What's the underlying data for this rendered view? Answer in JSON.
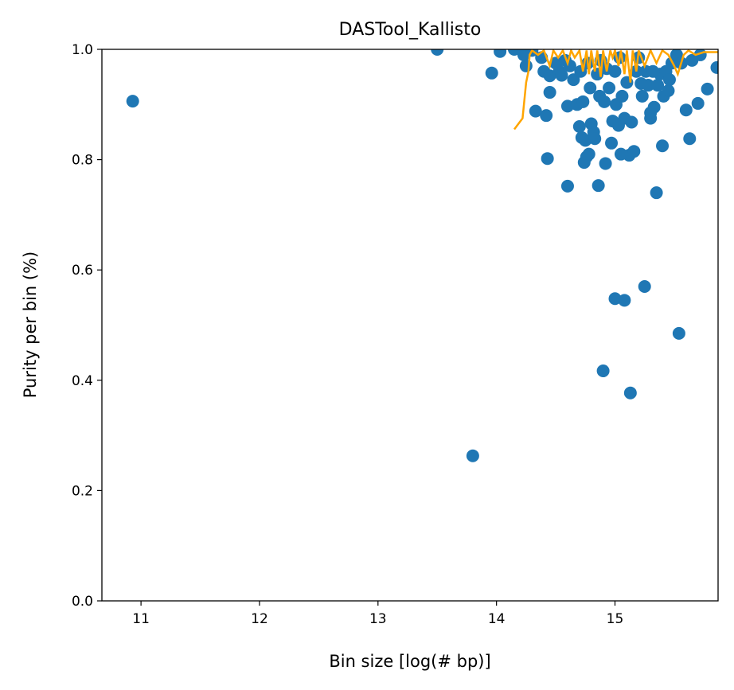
{
  "chart_data": {
    "type": "scatter",
    "title": "DASTool_Kallisto",
    "xlabel": "Bin size [log(# bp)]",
    "ylabel": "Purity per bin (%)",
    "xlim": [
      10.67,
      15.87
    ],
    "ylim": [
      0.0,
      1.0
    ],
    "xticks": [
      11,
      12,
      13,
      14,
      15
    ],
    "xtick_labels": [
      "11",
      "12",
      "13",
      "14",
      "15"
    ],
    "yticks": [
      0.0,
      0.2,
      0.4,
      0.6,
      0.8,
      1.0
    ],
    "ytick_labels": [
      "0.0",
      "0.2",
      "0.4",
      "0.6",
      "0.8",
      "1.0"
    ],
    "grid": false,
    "colors": {
      "scatter": "#1f77b4",
      "line": "#ffa500"
    },
    "series": [
      {
        "kind": "scatter",
        "points": [
          [
            10.93,
            0.906
          ],
          [
            13.5,
            1.0
          ],
          [
            13.8,
            0.263
          ],
          [
            13.96,
            0.957
          ],
          [
            14.03,
            0.996
          ],
          [
            14.15,
            1.0
          ],
          [
            14.23,
            0.99
          ],
          [
            14.25,
            0.97
          ],
          [
            14.3,
            0.998
          ],
          [
            14.33,
            0.888
          ],
          [
            14.38,
            0.985
          ],
          [
            14.4,
            0.96
          ],
          [
            14.42,
            0.88
          ],
          [
            14.43,
            0.802
          ],
          [
            14.45,
            0.922
          ],
          [
            14.45,
            0.952
          ],
          [
            14.5,
            0.975
          ],
          [
            14.53,
            0.96
          ],
          [
            14.55,
            0.953
          ],
          [
            14.58,
            0.98
          ],
          [
            14.6,
            0.897
          ],
          [
            14.6,
            0.752
          ],
          [
            14.62,
            0.97
          ],
          [
            14.65,
            0.945
          ],
          [
            14.68,
            0.9
          ],
          [
            14.7,
            0.86
          ],
          [
            14.71,
            0.96
          ],
          [
            14.72,
            0.84
          ],
          [
            14.73,
            0.905
          ],
          [
            14.74,
            0.795
          ],
          [
            14.75,
            0.835
          ],
          [
            14.76,
            0.805
          ],
          [
            14.77,
            0.975
          ],
          [
            14.78,
            0.81
          ],
          [
            14.79,
            0.93
          ],
          [
            14.8,
            0.865
          ],
          [
            14.82,
            0.85
          ],
          [
            14.83,
            0.838
          ],
          [
            14.85,
            0.955
          ],
          [
            14.86,
            0.753
          ],
          [
            14.87,
            0.915
          ],
          [
            14.88,
            0.98
          ],
          [
            14.9,
            0.417
          ],
          [
            14.91,
            0.905
          ],
          [
            14.92,
            0.793
          ],
          [
            14.93,
            0.965
          ],
          [
            14.95,
            0.93
          ],
          [
            14.97,
            0.83
          ],
          [
            14.98,
            0.87
          ],
          [
            15.0,
            0.548
          ],
          [
            15.0,
            0.96
          ],
          [
            15.01,
            0.9
          ],
          [
            15.03,
            0.862
          ],
          [
            15.04,
            0.985
          ],
          [
            15.05,
            0.81
          ],
          [
            15.06,
            0.915
          ],
          [
            15.08,
            0.545
          ],
          [
            15.08,
            0.875
          ],
          [
            15.1,
            0.94
          ],
          [
            15.12,
            0.808
          ],
          [
            15.13,
            0.377
          ],
          [
            15.14,
            0.868
          ],
          [
            15.16,
            0.815
          ],
          [
            15.18,
            0.96
          ],
          [
            15.2,
            0.985
          ],
          [
            15.22,
            0.938
          ],
          [
            15.23,
            0.915
          ],
          [
            15.25,
            0.57
          ],
          [
            15.26,
            0.96
          ],
          [
            15.28,
            0.935
          ],
          [
            15.3,
            0.875
          ],
          [
            15.3,
            0.885
          ],
          [
            15.32,
            0.96
          ],
          [
            15.33,
            0.895
          ],
          [
            15.35,
            0.74
          ],
          [
            15.36,
            0.935
          ],
          [
            15.38,
            0.955
          ],
          [
            15.4,
            0.825
          ],
          [
            15.41,
            0.915
          ],
          [
            15.43,
            0.96
          ],
          [
            15.45,
            0.925
          ],
          [
            15.46,
            0.945
          ],
          [
            15.48,
            0.975
          ],
          [
            15.52,
            0.99
          ],
          [
            15.54,
            0.485
          ],
          [
            15.56,
            0.975
          ],
          [
            15.6,
            0.89
          ],
          [
            15.63,
            0.838
          ],
          [
            15.65,
            0.98
          ],
          [
            15.7,
            0.902
          ],
          [
            15.72,
            0.99
          ],
          [
            15.78,
            0.928
          ],
          [
            15.86,
            0.967
          ]
        ]
      },
      {
        "kind": "line",
        "points": [
          [
            14.15,
            0.855
          ],
          [
            14.22,
            0.875
          ],
          [
            14.25,
            0.94
          ],
          [
            14.27,
            0.96
          ],
          [
            14.28,
            0.99
          ],
          [
            14.3,
            0.998
          ],
          [
            14.35,
            0.99
          ],
          [
            14.4,
            0.998
          ],
          [
            14.45,
            0.97
          ],
          [
            14.48,
            0.998
          ],
          [
            14.52,
            0.985
          ],
          [
            14.56,
            0.998
          ],
          [
            14.6,
            0.975
          ],
          [
            14.63,
            0.998
          ],
          [
            14.66,
            0.985
          ],
          [
            14.7,
            0.998
          ],
          [
            14.73,
            0.96
          ],
          [
            14.76,
            0.998
          ],
          [
            14.78,
            0.955
          ],
          [
            14.8,
            0.998
          ],
          [
            14.83,
            0.96
          ],
          [
            14.85,
            0.998
          ],
          [
            14.88,
            0.95
          ],
          [
            14.9,
            0.998
          ],
          [
            14.93,
            0.96
          ],
          [
            14.96,
            0.998
          ],
          [
            14.98,
            0.985
          ],
          [
            15.0,
            0.998
          ],
          [
            15.03,
            0.97
          ],
          [
            15.05,
            0.998
          ],
          [
            15.08,
            0.955
          ],
          [
            15.1,
            0.998
          ],
          [
            15.13,
            0.94
          ],
          [
            15.15,
            0.998
          ],
          [
            15.18,
            0.96
          ],
          [
            15.2,
            0.998
          ],
          [
            15.25,
            0.97
          ],
          [
            15.3,
            0.998
          ],
          [
            15.35,
            0.975
          ],
          [
            15.4,
            0.998
          ],
          [
            15.45,
            0.99
          ],
          [
            15.5,
            0.97
          ],
          [
            15.53,
            0.955
          ],
          [
            15.58,
            0.99
          ],
          [
            15.62,
            0.998
          ],
          [
            15.68,
            0.99
          ],
          [
            15.75,
            0.995
          ],
          [
            15.87,
            0.995
          ]
        ]
      }
    ]
  }
}
